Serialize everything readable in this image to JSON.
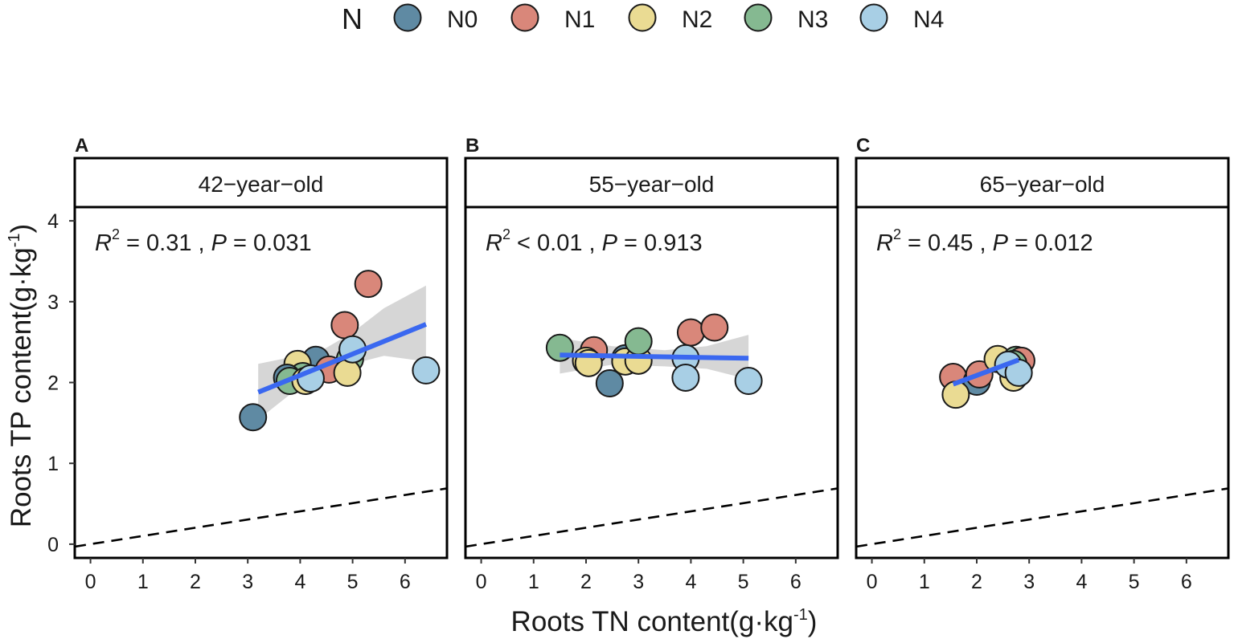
{
  "legend": {
    "title": "N",
    "entries": [
      {
        "label": "N0",
        "color": "#5f8aa3"
      },
      {
        "label": "N1",
        "color": "#d9877a"
      },
      {
        "label": "N2",
        "color": "#eadb93"
      },
      {
        "label": "N3",
        "color": "#85b991"
      },
      {
        "label": "N4",
        "color": "#a8cfe5"
      }
    ]
  },
  "axes": {
    "xlabel": "Roots TN content(g·kg",
    "xlabel_sup": "-1",
    "xlabel_close": ")",
    "ylabel": "Roots TP content(g·kg",
    "ylabel_sup": "-1",
    "ylabel_close": ")"
  },
  "styles": {
    "fit_color": "#3a68f0",
    "band_color": "#c8c8c8",
    "reference_line": "dashed"
  },
  "chart_data": [
    {
      "type": "scatter",
      "panel_letter": "A",
      "title": "42−year−old",
      "stat_r2": "= 0.31",
      "stat_p": "= 0.031",
      "xlim": [
        -0.3,
        6.8
      ],
      "ylim": [
        -0.17,
        4.17
      ],
      "xticks": [
        "0",
        "1",
        "2",
        "3",
        "4",
        "5",
        "6"
      ],
      "yticks": [
        "0",
        "1",
        "2",
        "3",
        "4"
      ],
      "reference_line": {
        "x0": -0.3,
        "y0": -0.03,
        "x1": 6.8,
        "y1": 0.69
      },
      "fit": {
        "x0": 3.2,
        "y0": 1.88,
        "x1": 6.4,
        "y1": 2.72
      },
      "band": [
        [
          3.2,
          2.23
        ],
        [
          3.8,
          2.31
        ],
        [
          4.5,
          2.43
        ],
        [
          5.0,
          2.62
        ],
        [
          5.6,
          2.92
        ],
        [
          6.4,
          3.2
        ],
        [
          6.4,
          2.26
        ],
        [
          5.6,
          2.33
        ],
        [
          5.0,
          2.23
        ],
        [
          4.5,
          2.11
        ],
        [
          3.8,
          1.85
        ],
        [
          3.2,
          1.54
        ]
      ],
      "points": [
        {
          "x": 5.3,
          "y": 3.22,
          "group": "N1"
        },
        {
          "x": 4.85,
          "y": 2.71,
          "group": "N1"
        },
        {
          "x": 4.3,
          "y": 2.28,
          "group": "N0"
        },
        {
          "x": 3.95,
          "y": 2.23,
          "group": "N2"
        },
        {
          "x": 4.55,
          "y": 2.16,
          "group": "N1"
        },
        {
          "x": 4.95,
          "y": 2.29,
          "group": "N3"
        },
        {
          "x": 4.9,
          "y": 2.12,
          "group": "N2"
        },
        {
          "x": 4.05,
          "y": 2.08,
          "group": "N3"
        },
        {
          "x": 3.75,
          "y": 2.06,
          "group": "N0"
        },
        {
          "x": 3.8,
          "y": 2.02,
          "group": "N3"
        },
        {
          "x": 4.1,
          "y": 2.02,
          "group": "N2"
        },
        {
          "x": 4.2,
          "y": 2.05,
          "group": "N4"
        },
        {
          "x": 5.0,
          "y": 2.41,
          "group": "N4"
        },
        {
          "x": 6.4,
          "y": 2.15,
          "group": "N4"
        },
        {
          "x": 3.1,
          "y": 1.57,
          "group": "N0"
        }
      ]
    },
    {
      "type": "scatter",
      "panel_letter": "B",
      "title": "55−year−old",
      "stat_r2": "< 0.01",
      "stat_p": "= 0.913",
      "xlim": [
        -0.3,
        6.8
      ],
      "ylim": [
        -0.17,
        4.17
      ],
      "xticks": [
        "0",
        "1",
        "2",
        "3",
        "4",
        "5",
        "6"
      ],
      "yticks": [],
      "reference_line": {
        "x0": -0.3,
        "y0": -0.03,
        "x1": 6.8,
        "y1": 0.69
      },
      "fit": {
        "x0": 1.5,
        "y0": 2.34,
        "x1": 5.1,
        "y1": 2.3
      },
      "band": [
        [
          1.5,
          2.55
        ],
        [
          2.5,
          2.45
        ],
        [
          3.5,
          2.4
        ],
        [
          4.3,
          2.45
        ],
        [
          5.1,
          2.59
        ],
        [
          5.1,
          2.04
        ],
        [
          4.3,
          2.17
        ],
        [
          3.5,
          2.2
        ],
        [
          2.5,
          2.22
        ],
        [
          1.5,
          2.11
        ]
      ],
      "points": [
        {
          "x": 1.5,
          "y": 2.43,
          "group": "N3"
        },
        {
          "x": 2.15,
          "y": 2.4,
          "group": "N1"
        },
        {
          "x": 2.0,
          "y": 2.27,
          "group": "N2"
        },
        {
          "x": 2.05,
          "y": 2.24,
          "group": "N2"
        },
        {
          "x": 2.45,
          "y": 1.99,
          "group": "N0"
        },
        {
          "x": 2.75,
          "y": 2.3,
          "group": "N0"
        },
        {
          "x": 2.75,
          "y": 2.26,
          "group": "N2"
        },
        {
          "x": 3.0,
          "y": 2.27,
          "group": "N2"
        },
        {
          "x": 3.0,
          "y": 2.51,
          "group": "N3"
        },
        {
          "x": 4.0,
          "y": 2.62,
          "group": "N1"
        },
        {
          "x": 4.45,
          "y": 2.68,
          "group": "N1"
        },
        {
          "x": 3.9,
          "y": 2.3,
          "group": "N4"
        },
        {
          "x": 3.9,
          "y": 2.06,
          "group": "N4"
        },
        {
          "x": 5.1,
          "y": 2.02,
          "group": "N4"
        }
      ]
    },
    {
      "type": "scatter",
      "panel_letter": "C",
      "title": "65−year−old",
      "stat_r2": "= 0.45",
      "stat_p": "= 0.012",
      "xlim": [
        -0.3,
        6.8
      ],
      "ylim": [
        -0.17,
        4.17
      ],
      "xticks": [
        "0",
        "1",
        "2",
        "3",
        "4",
        "5",
        "6"
      ],
      "yticks": [],
      "reference_line": {
        "x0": -0.3,
        "y0": -0.03,
        "x1": 6.8,
        "y1": 0.69
      },
      "fit": {
        "x0": 1.55,
        "y0": 1.98,
        "x1": 2.8,
        "y1": 2.28
      },
      "band": [],
      "points": [
        {
          "x": 1.55,
          "y": 2.07,
          "group": "N1"
        },
        {
          "x": 2.0,
          "y": 2.01,
          "group": "N0"
        },
        {
          "x": 2.05,
          "y": 2.1,
          "group": "N1"
        },
        {
          "x": 1.6,
          "y": 1.85,
          "group": "N2"
        },
        {
          "x": 2.4,
          "y": 2.29,
          "group": "N2"
        },
        {
          "x": 2.7,
          "y": 2.06,
          "group": "N2"
        },
        {
          "x": 2.75,
          "y": 2.28,
          "group": "N3"
        },
        {
          "x": 2.85,
          "y": 2.27,
          "group": "N1"
        },
        {
          "x": 2.7,
          "y": 2.23,
          "group": "N3"
        },
        {
          "x": 2.6,
          "y": 2.22,
          "group": "N4"
        },
        {
          "x": 2.8,
          "y": 2.12,
          "group": "N4"
        }
      ]
    }
  ]
}
